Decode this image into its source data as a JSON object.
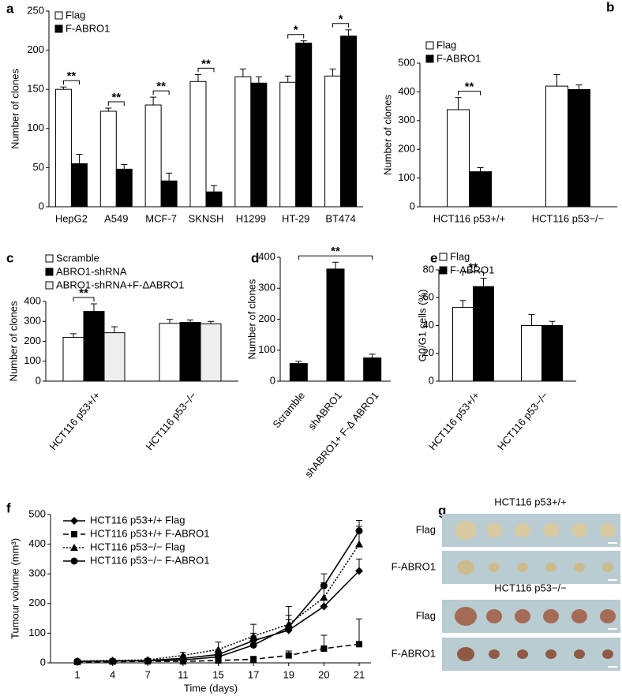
{
  "chart_data": [
    {
      "panel": "a",
      "type": "bar",
      "categories": [
        "HepG2",
        "A549",
        "MCF-7",
        "SKNSH",
        "H1299",
        "HT-29",
        "BT474"
      ],
      "series": [
        {
          "name": "Flag",
          "color": "#ffffff",
          "values": [
            150,
            122,
            130,
            160,
            166,
            159,
            167
          ],
          "errors": [
            3,
            4,
            10,
            9,
            10,
            8,
            9
          ]
        },
        {
          "name": "F-ABRO1",
          "color": "#000000",
          "values": [
            55,
            48,
            33,
            19,
            158,
            209,
            218
          ],
          "errors": [
            12,
            6,
            10,
            8,
            8,
            3,
            8
          ]
        }
      ],
      "ylabel": "Number of clones",
      "ylim": [
        0,
        250
      ],
      "yticks": [
        0,
        50,
        100,
        150,
        200,
        250
      ],
      "annotations": [
        "**",
        "**",
        "**",
        "**",
        "*",
        "*"
      ],
      "legend": "upper left"
    },
    {
      "panel": "b",
      "type": "bar",
      "categories": [
        "HCT116 p53+/+",
        "HCT116 p53−/−"
      ],
      "series": [
        {
          "name": "Flag",
          "color": "#ffffff",
          "values": [
            338,
            420
          ],
          "errors": [
            42,
            40
          ]
        },
        {
          "name": "F-ABRO1",
          "color": "#000000",
          "values": [
            122,
            408
          ],
          "errors": [
            14,
            16
          ]
        }
      ],
      "ylabel": "Number of clones",
      "ylim": [
        0,
        500
      ],
      "yticks": [
        0,
        100,
        200,
        300,
        400,
        500
      ],
      "annotations": [
        "**"
      ],
      "legend": "upper left"
    },
    {
      "panel": "c",
      "type": "bar",
      "categories": [
        "HCT116 p53+/+",
        "HCT116 p53−/−"
      ],
      "series": [
        {
          "name": "Scramble",
          "color": "#ffffff",
          "values": [
            220,
            290
          ],
          "errors": [
            18,
            20
          ]
        },
        {
          "name": "ABRO1-shRNA",
          "color": "#000000",
          "values": [
            350,
            295
          ],
          "errors": [
            38,
            12
          ]
        },
        {
          "name": "ABRO1-shRNA+F-ΔABRO1",
          "color": "#eeeeee",
          "values": [
            243,
            288
          ],
          "errors": [
            30,
            12
          ]
        }
      ],
      "ylabel": "Number of clones",
      "ylim": [
        0,
        400
      ],
      "yticks": [
        0,
        100,
        200,
        300,
        400
      ],
      "annotations": [
        "**"
      ],
      "legend": "upper left"
    },
    {
      "panel": "d",
      "type": "bar",
      "categories": [
        "Scramble",
        "shABRO1",
        "shABRO1+ F-Δ ABRO1"
      ],
      "series": [
        {
          "color": "#000000",
          "values": [
            57,
            362,
            75
          ],
          "errors": [
            7,
            22,
            12
          ]
        }
      ],
      "ylabel": "Number of clones",
      "ylim": [
        0,
        400
      ],
      "yticks": [
        0,
        100,
        200,
        300,
        400
      ],
      "annotations": [
        "**"
      ]
    },
    {
      "panel": "e",
      "type": "bar",
      "categories": [
        "HCT116 p53+/+",
        "HCT116 p53−/−"
      ],
      "series": [
        {
          "name": "Flag",
          "color": "#ffffff",
          "values": [
            53,
            40
          ],
          "errors": [
            5,
            8
          ]
        },
        {
          "name": "F-ABRO1",
          "color": "#000000",
          "values": [
            68,
            40
          ],
          "errors": [
            6,
            3
          ]
        }
      ],
      "ylabel": "G0/G1 cells (%)",
      "ylim": [
        0,
        80
      ],
      "yticks": [
        0,
        20,
        40,
        60,
        80
      ],
      "annotations": [
        "**"
      ],
      "legend": "upper left"
    },
    {
      "panel": "f",
      "type": "line",
      "categories": [
        1,
        4,
        7,
        11,
        15,
        17,
        19,
        20,
        21
      ],
      "series": [
        {
          "name": "HCT116 p53+/+ Flag",
          "color": "#000000",
          "marker": "diamond",
          "linestyle": "solid",
          "values": [
            5,
            7,
            8,
            15,
            28,
            75,
            110,
            190,
            310
          ],
          "errors": [
            3,
            3,
            4,
            8,
            15,
            25,
            35,
            25,
            40
          ]
        },
        {
          "name": "HCT116 p53+/+ F-ABRO1",
          "color": "#000000",
          "marker": "square",
          "linestyle": "dashed",
          "values": [
            3,
            4,
            5,
            5,
            8,
            12,
            25,
            48,
            63
          ],
          "errors": [
            2,
            2,
            2,
            3,
            5,
            10,
            15,
            45,
            85
          ]
        },
        {
          "name": "HCT116 p53−/− Flag",
          "color": "#000000",
          "marker": "triangle",
          "linestyle": "dotted",
          "values": [
            6,
            8,
            10,
            25,
            45,
            90,
            130,
            220,
            400
          ],
          "errors": [
            3,
            4,
            5,
            10,
            25,
            40,
            60,
            50,
            60
          ]
        },
        {
          "name": "HCT116 p53−/− F-ABRO1",
          "color": "#000000",
          "marker": "circle",
          "linestyle": "solid",
          "values": [
            5,
            6,
            7,
            10,
            20,
            60,
            120,
            260,
            445
          ],
          "errors": [
            2,
            3,
            4,
            8,
            15,
            30,
            40,
            40,
            35
          ]
        }
      ],
      "xlabel": "Time (days)",
      "ylabel": "Tumour volume (mm³)",
      "ylim": [
        0,
        500
      ],
      "yticks": [
        0,
        100,
        200,
        300,
        400,
        500
      ],
      "legend": "upper left"
    }
  ],
  "photo": {
    "panel": "g",
    "groups": [
      {
        "title": "HCT116 p53+/+",
        "rows": [
          "Flag",
          "F-ABRO1"
        ]
      },
      {
        "title": "HCT116 p53−/−",
        "rows": [
          "Flag",
          "F-ABRO1"
        ]
      }
    ]
  }
}
